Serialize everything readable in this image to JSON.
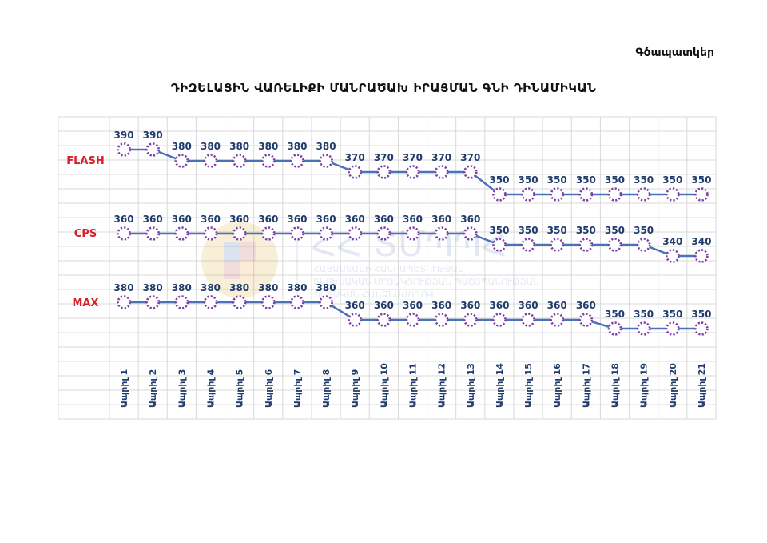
{
  "page": {
    "corner_label": "Գծապատկեր"
  },
  "chart_data": {
    "type": "line",
    "title": "ԴԻԶԵԼԱՅԻՆ ՎԱՌԵԼԻՔԻ ՄԱՆՐԱԾԱԽ ԻՐԱՑՄԱՆ ԳՆԻ ԴԻՆԱՄԻԿԱՆ",
    "xlabel": "",
    "ylabel": "",
    "grid": true,
    "categories": [
      "Ապրիլ 1",
      "Ապրիլ 2",
      "Ապրիլ 3",
      "Ապրիլ 4",
      "Ապրիլ 5",
      "Ապրիլ 6",
      "Ապրիլ 7",
      "Ապրիլ 8",
      "Ապրիլ 9",
      "Ապրիլ 10",
      "Ապրիլ 11",
      "Ապրիլ 12",
      "Ապրիլ 13",
      "Ապրիլ 14",
      "Ապրիլ 15",
      "Ապրիլ 16",
      "Ապրիլ 17",
      "Ապրիլ 18",
      "Ապրիլ 19",
      "Ապրիլ 20",
      "Ապրիլ 21"
    ],
    "series": [
      {
        "name": "FLASH",
        "values": [
          390,
          390,
          380,
          380,
          380,
          380,
          380,
          380,
          370,
          370,
          370,
          370,
          370,
          350,
          350,
          350,
          350,
          350,
          350,
          350,
          350
        ]
      },
      {
        "name": "CPS",
        "values": [
          360,
          360,
          360,
          360,
          360,
          360,
          360,
          360,
          360,
          360,
          360,
          360,
          360,
          350,
          350,
          350,
          350,
          350,
          350,
          340,
          340
        ]
      },
      {
        "name": "MAX",
        "values": [
          380,
          380,
          380,
          380,
          380,
          380,
          380,
          380,
          360,
          360,
          360,
          360,
          360,
          360,
          360,
          360,
          360,
          350,
          350,
          350,
          350
        ]
      }
    ],
    "colors": {
      "line": "#4a72b8",
      "marker": "#7b3fa8",
      "value_label": "#1f3a6b",
      "series_label": "#d6202a",
      "grid": "#d9d9d9"
    }
  },
  "watermark": {
    "name": "ՀՀ ՏՄՊՊՀ",
    "line1": "ՀԱՅԱՍՏԱՆԻ ՀԱՆՐԱՊԵՏՈՒԹՅԱՆ",
    "line2": "ՏՆՏԵՍԱԿԱՆ ՄՐՑԱԿՑՈՒԹՅԱՆ ՊԱՇՏՊԱՆՈՒԹՅԱՆ",
    "line3": "ՊԵՏԱԿԱՆ ՀԱՆՁՆԱԺՈՂՈՎ"
  }
}
